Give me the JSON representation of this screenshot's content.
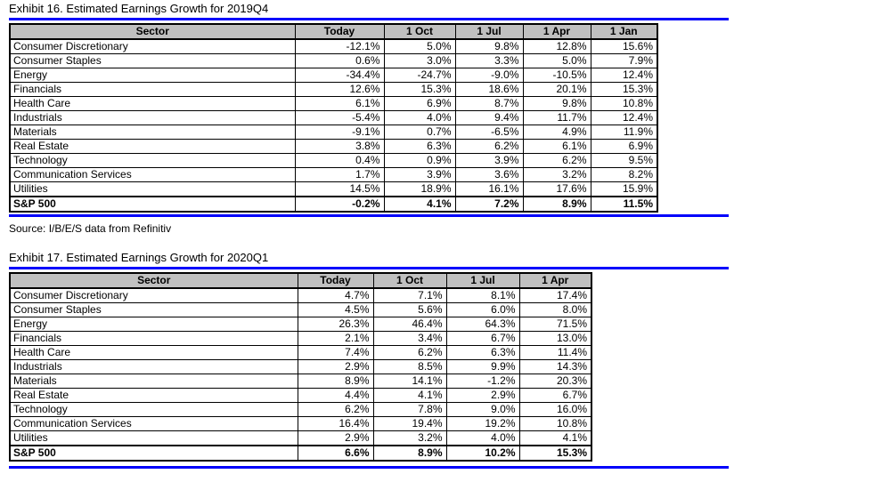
{
  "page": {
    "accent_blue": "#0101fb",
    "header_bg": "#c0c0c0",
    "source_note": "Source: I/B/E/S data from Refinitiv"
  },
  "exhibits": [
    {
      "title": "Exhibit 16. Estimated Earnings Growth for 2019Q4",
      "columns": [
        "Sector",
        "Today",
        "1 Oct",
        "1 Jul",
        "1 Apr",
        "1 Jan"
      ],
      "rows": [
        {
          "sector": "Consumer Discretionary",
          "values": [
            "-12.1%",
            "5.0%",
            "9.8%",
            "12.8%",
            "15.6%"
          ]
        },
        {
          "sector": "Consumer Staples",
          "values": [
            "0.6%",
            "3.0%",
            "3.3%",
            "5.0%",
            "7.9%"
          ]
        },
        {
          "sector": "Energy",
          "values": [
            "-34.4%",
            "-24.7%",
            "-9.0%",
            "-10.5%",
            "12.4%"
          ]
        },
        {
          "sector": "Financials",
          "values": [
            "12.6%",
            "15.3%",
            "18.6%",
            "20.1%",
            "15.3%"
          ]
        },
        {
          "sector": "Health Care",
          "values": [
            "6.1%",
            "6.9%",
            "8.7%",
            "9.8%",
            "10.8%"
          ]
        },
        {
          "sector": "Industrials",
          "values": [
            "-5.4%",
            "4.0%",
            "9.4%",
            "11.7%",
            "12.4%"
          ]
        },
        {
          "sector": "Materials",
          "values": [
            "-9.1%",
            "0.7%",
            "-6.5%",
            "4.9%",
            "11.9%"
          ]
        },
        {
          "sector": "Real Estate",
          "values": [
            "3.8%",
            "6.3%",
            "6.2%",
            "6.1%",
            "6.9%"
          ]
        },
        {
          "sector": "Technology",
          "values": [
            "0.4%",
            "0.9%",
            "3.9%",
            "6.2%",
            "9.5%"
          ]
        },
        {
          "sector": "Communication Services",
          "values": [
            "1.7%",
            "3.9%",
            "3.6%",
            "3.2%",
            "8.2%"
          ]
        },
        {
          "sector": "Utilities",
          "values": [
            "14.5%",
            "18.9%",
            "16.1%",
            "17.6%",
            "15.9%"
          ]
        },
        {
          "sector": "S&P 500",
          "values": [
            "-0.2%",
            "4.1%",
            "7.2%",
            "8.9%",
            "11.5%"
          ],
          "bold": true
        }
      ]
    },
    {
      "title": "Exhibit 17. Estimated Earnings Growth for 2020Q1",
      "columns": [
        "Sector",
        "Today",
        "1 Oct",
        "1 Jul",
        "1 Apr"
      ],
      "rows": [
        {
          "sector": "Consumer Discretionary",
          "values": [
            "4.7%",
            "7.1%",
            "8.1%",
            "17.4%"
          ]
        },
        {
          "sector": "Consumer Staples",
          "values": [
            "4.5%",
            "5.6%",
            "6.0%",
            "8.0%"
          ]
        },
        {
          "sector": "Energy",
          "values": [
            "26.3%",
            "46.4%",
            "64.3%",
            "71.5%"
          ]
        },
        {
          "sector": "Financials",
          "values": [
            "2.1%",
            "3.4%",
            "6.7%",
            "13.0%"
          ]
        },
        {
          "sector": "Health Care",
          "values": [
            "7.4%",
            "6.2%",
            "6.3%",
            "11.4%"
          ]
        },
        {
          "sector": "Industrials",
          "values": [
            "2.9%",
            "8.5%",
            "9.9%",
            "14.3%"
          ]
        },
        {
          "sector": "Materials",
          "values": [
            "8.9%",
            "14.1%",
            "-1.2%",
            "20.3%"
          ]
        },
        {
          "sector": "Real Estate",
          "values": [
            "4.4%",
            "4.1%",
            "2.9%",
            "6.7%"
          ]
        },
        {
          "sector": "Technology",
          "values": [
            "6.2%",
            "7.8%",
            "9.0%",
            "16.0%"
          ]
        },
        {
          "sector": "Communication Services",
          "values": [
            "16.4%",
            "19.4%",
            "19.2%",
            "10.8%"
          ]
        },
        {
          "sector": "Utilities",
          "values": [
            "2.9%",
            "3.2%",
            "4.0%",
            "4.1%"
          ]
        },
        {
          "sector": "S&P 500",
          "values": [
            "6.6%",
            "8.9%",
            "10.2%",
            "15.3%"
          ],
          "bold": true
        }
      ]
    }
  ]
}
